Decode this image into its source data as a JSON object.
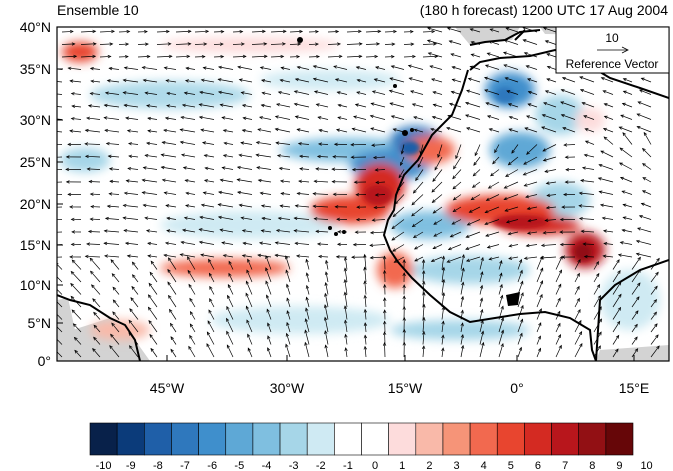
{
  "header": {
    "left_title": "Ensemble 10",
    "right_title": "(180 h forecast) 1200 UTC 17 Aug 2004"
  },
  "map": {
    "lat_labels": [
      "40°N",
      "35°N",
      "30°N",
      "25°N",
      "20°N",
      "15°N",
      "10°N",
      "5°N",
      "0°"
    ],
    "lon_labels": [
      "45°W",
      "30°W",
      "15°W",
      "0°",
      "15°E"
    ],
    "reference_vector": {
      "magnitude": "10",
      "label": "Reference Vector"
    },
    "land_mask_color": "#d3d3d3",
    "vector_color": "#000000"
  },
  "colorbar": {
    "labels": [
      "-10",
      "-9",
      "-8",
      "-7",
      "-6",
      "-5",
      "-4",
      "-3",
      "-2",
      "-1",
      "0",
      "1",
      "2",
      "3",
      "4",
      "5",
      "6",
      "7",
      "8",
      "9",
      "10"
    ],
    "colors": [
      "#08214a",
      "#0b3b7a",
      "#1f5fa8",
      "#2f78bd",
      "#3f8fcc",
      "#5ea8d6",
      "#7fbfe0",
      "#a6d6e8",
      "#cfeaf3",
      "#ffffff",
      "#ffffff",
      "#fddcdc",
      "#f9b9a9",
      "#f69478",
      "#f2694f",
      "#e8452f",
      "#d42a22",
      "#b8161c",
      "#921014",
      "#660608"
    ]
  }
}
